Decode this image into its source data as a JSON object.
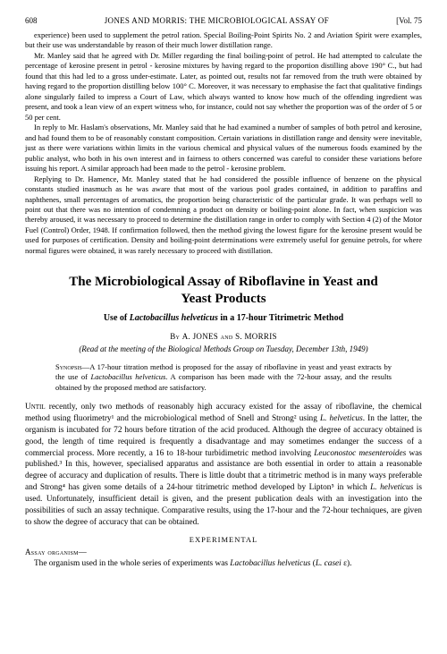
{
  "page_number": "608",
  "running_head": "JONES AND MORRIS: THE MICROBIOLOGICAL ASSAY OF",
  "vol_label": "[Vol. 75",
  "carryover": {
    "p1": "experience) been used to supplement the petrol ration. Special Boiling-Point Spirits No. 2 and Aviation Spirit were examples, but their use was understandable by reason of their much lower distillation range.",
    "p2": "Mr. Manley said that he agreed with Dr. Miller regarding the final boiling-point of petrol. He had attempted to calculate the percentage of kerosine present in petrol - kerosine mixtures by having regard to the proportion distilling above 190° C., but had found that this had led to a gross under-estimate. Later, as pointed out, results not far removed from the truth were obtained by having regard to the proportion distilling below 100° C. Moreover, it was necessary to emphasise the fact that qualitative findings alone singularly failed to impress a Court of Law, which always wanted to know how much of the offending ingredient was present, and took a lean view of an expert witness who, for instance, could not say whether the proportion was of the order of 5 or 50 per cent.",
    "p3": "In reply to Mr. Haslam's observations, Mr. Manley said that he had examined a number of samples of both petrol and kerosine, and had found them to be of reasonably constant composition. Certain variations in distillation range and density were inevitable, just as there were variations within limits in the various chemical and physical values of the numerous foods examined by the public analyst, who both in his own interest and in fairness to others concerned was careful to consider these variations before issuing his report. A similar approach had been made to the petrol - kerosine problem.",
    "p4": "Replying to Dr. Hamence, Mr. Manley stated that he had considered the possible influence of benzene on the physical constants studied inasmuch as he was aware that most of the various pool grades contained, in addition to paraffins and naphthenes, small percentages of aromatics, the proportion being characteristic of the particular grade. It was perhaps well to point out that there was no intention of condemning a product on density or boiling-point alone. In fact, when suspicion was thereby aroused, it was necessary to proceed to determine the distillation range in order to comply with Section 4 (2) of the Motor Fuel (Control) Order, 1948. If confirmation followed, then the method giving the lowest figure for the kerosine present would be used for purposes of certification. Density and boiling-point determinations were extremely useful for genuine petrols, for where normal figures were obtained, it was rarely necessary to proceed with distillation."
  },
  "title_line1": "The Microbiological Assay of Riboflavine in Yeast and",
  "title_line2": "Yeast Products",
  "subtitle_prefix": "Use of ",
  "subtitle_italic": "Lactobacillus helveticus",
  "subtitle_suffix": " in a 17-hour Titrimetric Method",
  "by_prefix": "By ",
  "author1": "A. JONES",
  "by_and": " and ",
  "author2": "S. MORRIS",
  "meeting_line": "(Read at the meeting of the Biological Methods Group on Tuesday, December 13th, 1949)",
  "synopsis_label": "Synopsis",
  "synopsis_prefix": "—A 17-hour titration method is proposed for the assay of riboflavine in yeast and yeast extracts by the use of ",
  "synopsis_italic": "Lactobacillus helveticus",
  "synopsis_suffix": ". A comparison has been made with the 72-hour assay, and the results obtained by the proposed method are satisfactory.",
  "main": {
    "lead_word": "Until",
    "p1a": " recently, only two methods of reasonably high accuracy existed for the assay of riboflavine, the chemical method using fluorimetry¹ and the microbiological method of Snell and Strong² using ",
    "p1_italic1": "L. helveticus",
    "p1b": ". In the latter, the organism is incubated for 72 hours before titration of the acid produced. Although the degree of accuracy obtained is good, the length of time required is frequently a disadvantage and may sometimes endanger the success of a commercial process. More recently, a 16 to 18-hour turbidimetric method involving ",
    "p1_italic2": "Leuconostoc mesenteroides",
    "p1c": " was published.³ In this, however, specialised apparatus and assistance are both essential in order to attain a reasonable degree of accuracy and duplication of results. There is little doubt that a titrimetric method is in many ways preferable and Strong⁴ has given some details of a 24-hour titrimetric method developed by Lipton⁵ in which ",
    "p1_italic3": "L. helveticus",
    "p1d": " is used. Unfortunately, insufficient detail is given, and the present publication deals with an investigation into the possibilities of such an assay technique. Comparative results, using the 17-hour and the 72-hour techniques, are given to show the degree of accuracy that can be obtained."
  },
  "section_experimental": "EXPERIMENTAL",
  "subsection_assay": "Assay organism—",
  "assay_p_prefix": "The organism used in the whole series of experiments was ",
  "assay_p_italic": "Lactobacillus helveticus",
  "assay_p_paren_prefix": "(",
  "assay_p_paren_italic": "L. casei",
  "assay_p_paren_suffix": " ε)."
}
